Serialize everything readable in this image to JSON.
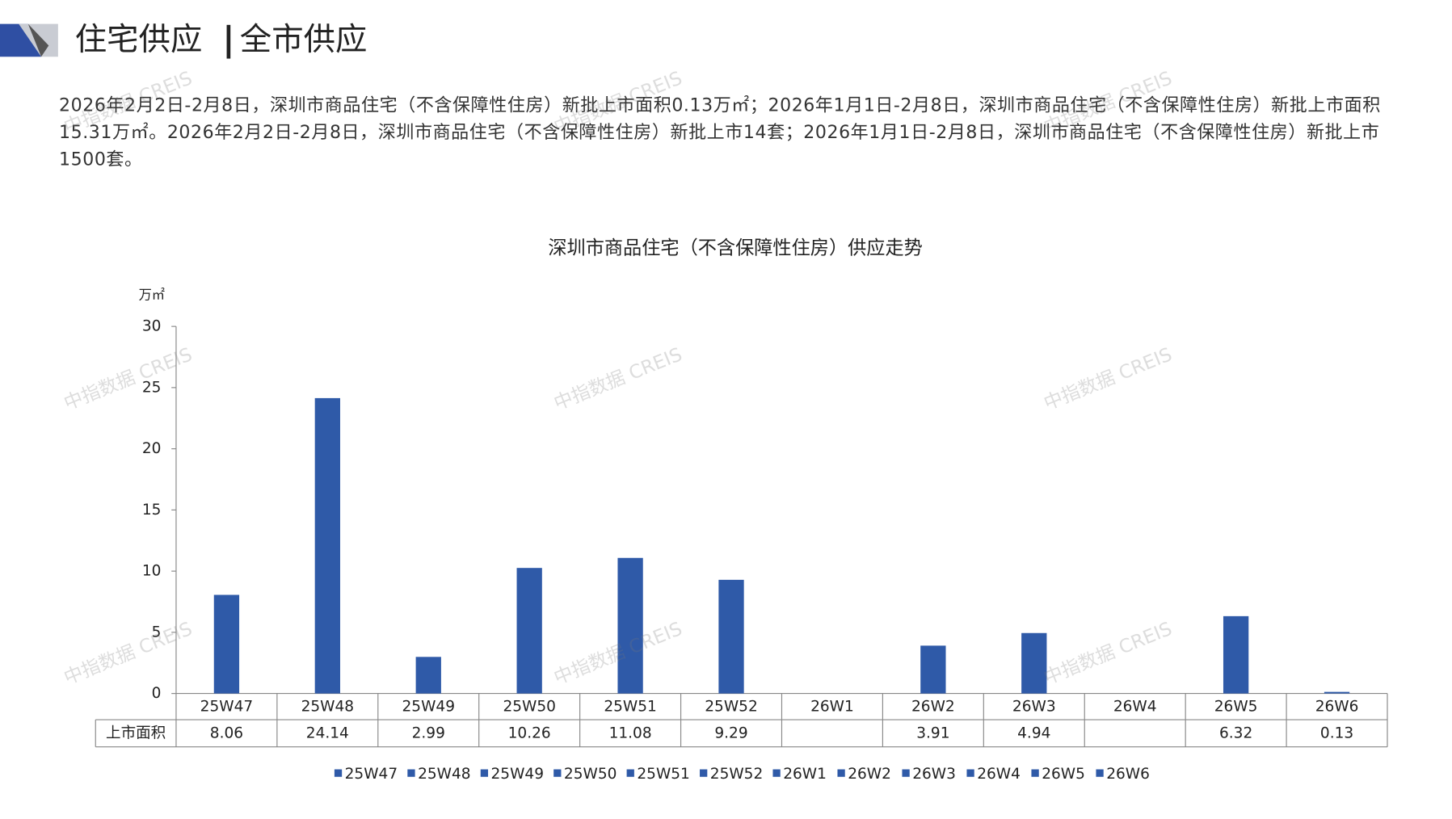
{
  "header": {
    "title": "住宅供应",
    "subtitle": "全市供应"
  },
  "paragraph": "2026年2月2日-2月8日，深圳市商品住宅（不含保障性住房）新批上市面积0.13万㎡；2026年1月1日-2月8日，深圳市商品住宅（不含保障性住房）新批上市面积15.31万㎡。2026年2月2日-2月8日，深圳市商品住宅（不含保障性住房）新批上市14套；2026年1月1日-2月8日，深圳市商品住宅（不含保障性住房）新批上市1500套。",
  "watermark": "中指数据 CREIS",
  "chart_data": {
    "type": "bar",
    "title": "深圳市商品住宅（不含保障性住房）供应走势",
    "y_label": "万㎡",
    "categories": [
      "25W47",
      "25W48",
      "25W49",
      "25W50",
      "25W51",
      "25W52",
      "26W1",
      "26W2",
      "26W3",
      "26W4",
      "26W5",
      "26W6"
    ],
    "series": [
      {
        "name": "上市面积",
        "color": "#2f5aa8",
        "values": [
          8.06,
          24.14,
          2.99,
          10.26,
          11.08,
          9.29,
          null,
          3.91,
          4.94,
          null,
          6.32,
          0.13
        ]
      }
    ],
    "ylim": [
      0,
      30
    ],
    "yticks": [
      0,
      5,
      10,
      15,
      20,
      25,
      30
    ],
    "data_table": true,
    "legend": "bottom"
  }
}
